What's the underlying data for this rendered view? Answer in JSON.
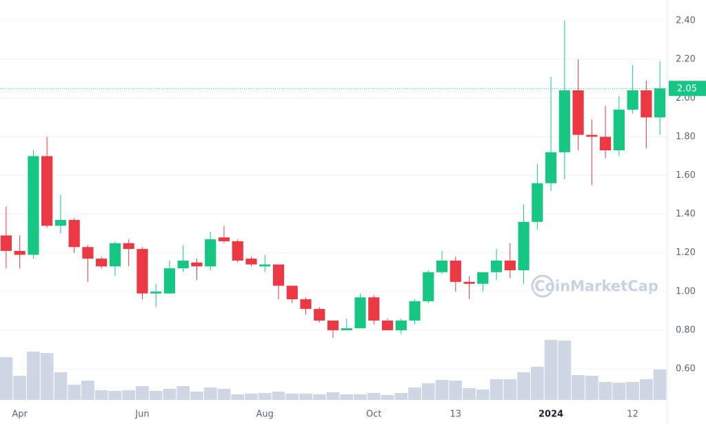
{
  "chart_data": {
    "type": "candlestick",
    "watermark": "CoinMarketCap",
    "categories": [
      null,
      "Apr",
      null,
      null,
      null,
      null,
      null,
      null,
      null,
      null,
      "Jun",
      null,
      null,
      null,
      null,
      null,
      null,
      null,
      null,
      "Aug",
      null,
      null,
      null,
      null,
      null,
      null,
      null,
      "Oct",
      null,
      null,
      null,
      null,
      null,
      "13",
      null,
      null,
      null,
      null,
      null,
      null,
      "2024",
      null,
      null,
      null,
      null,
      null,
      "12",
      null,
      null
    ],
    "open": [
      1.29,
      1.21,
      1.19,
      1.7,
      1.34,
      1.37,
      1.23,
      1.17,
      1.13,
      1.25,
      1.22,
      0.99,
      0.99,
      1.12,
      1.15,
      1.13,
      1.28,
      1.26,
      1.17,
      1.13,
      1.14,
      1.03,
      0.96,
      0.91,
      0.85,
      0.8,
      0.81,
      0.97,
      0.85,
      0.8,
      0.85,
      0.95,
      1.1,
      1.16,
      1.05,
      1.04,
      1.1,
      1.16,
      1.11,
      1.36,
      1.56,
      1.72,
      2.04,
      1.81,
      1.8,
      1.73,
      1.94,
      2.04,
      1.9
    ],
    "high": [
      1.44,
      1.29,
      1.73,
      1.8,
      1.5,
      1.38,
      1.24,
      1.18,
      1.26,
      1.27,
      1.23,
      1.04,
      1.16,
      1.24,
      1.17,
      1.31,
      1.34,
      1.27,
      1.18,
      1.19,
      1.14,
      1.03,
      0.97,
      0.92,
      0.85,
      0.86,
      0.99,
      0.98,
      0.86,
      0.86,
      0.96,
      1.11,
      1.21,
      1.18,
      1.08,
      1.1,
      1.22,
      1.25,
      1.45,
      1.66,
      2.11,
      2.4,
      2.2,
      1.89,
      1.96,
      2.01,
      2.17,
      2.09,
      2.19
    ],
    "low": [
      1.12,
      1.12,
      1.17,
      1.33,
      1.3,
      1.2,
      1.05,
      1.12,
      1.08,
      1.13,
      0.96,
      0.92,
      0.99,
      1.1,
      1.06,
      1.11,
      1.25,
      1.15,
      1.13,
      1.1,
      0.96,
      0.94,
      0.88,
      0.84,
      0.76,
      0.8,
      0.81,
      0.83,
      0.8,
      0.78,
      0.83,
      0.94,
      1.09,
      1.0,
      0.96,
      1.0,
      1.06,
      1.07,
      1.04,
      1.32,
      1.52,
      1.58,
      1.73,
      1.55,
      1.69,
      1.7,
      1.92,
      1.74,
      1.81
    ],
    "close": [
      1.21,
      1.19,
      1.7,
      1.34,
      1.37,
      1.23,
      1.17,
      1.13,
      1.25,
      1.22,
      0.99,
      1.0,
      1.12,
      1.16,
      1.13,
      1.27,
      1.26,
      1.16,
      1.14,
      1.14,
      1.03,
      0.96,
      0.91,
      0.85,
      0.8,
      0.81,
      0.97,
      0.85,
      0.8,
      0.85,
      0.95,
      1.1,
      1.16,
      1.05,
      1.04,
      1.1,
      1.16,
      1.11,
      1.36,
      1.56,
      1.72,
      2.04,
      1.81,
      1.8,
      1.73,
      1.94,
      2.04,
      1.9,
      2.05
    ],
    "volume": [
      62,
      35,
      70,
      68,
      40,
      22,
      28,
      14,
      13,
      14,
      20,
      13,
      16,
      20,
      12,
      18,
      16,
      8,
      9,
      10,
      12,
      9,
      9,
      8,
      11,
      8,
      8,
      10,
      7,
      10,
      18,
      24,
      29,
      28,
      17,
      15,
      30,
      30,
      40,
      48,
      87,
      86,
      36,
      35,
      26,
      25,
      26,
      30,
      44
    ],
    "up_color": "#16c784",
    "down_color": "#ea3943",
    "volume_color": "#cfd6e4",
    "ylim": [
      0.44,
      2.507
    ],
    "yticks": [
      {
        "value": 0.6,
        "label": "0.60"
      },
      {
        "value": 0.8,
        "label": "0.80"
      },
      {
        "value": 1.0,
        "label": "1.00"
      },
      {
        "value": 1.2,
        "label": "1.20"
      },
      {
        "value": 1.4,
        "label": "1.40"
      },
      {
        "value": 1.6,
        "label": "1.60"
      },
      {
        "value": 1.8,
        "label": "1.80"
      },
      {
        "value": 2.0,
        "label": "2.00"
      },
      {
        "value": 2.2,
        "label": "2.20"
      },
      {
        "value": 2.4,
        "label": "2.40"
      }
    ],
    "last_price": {
      "value": 2.05,
      "label": "2.05"
    },
    "grid": true
  }
}
